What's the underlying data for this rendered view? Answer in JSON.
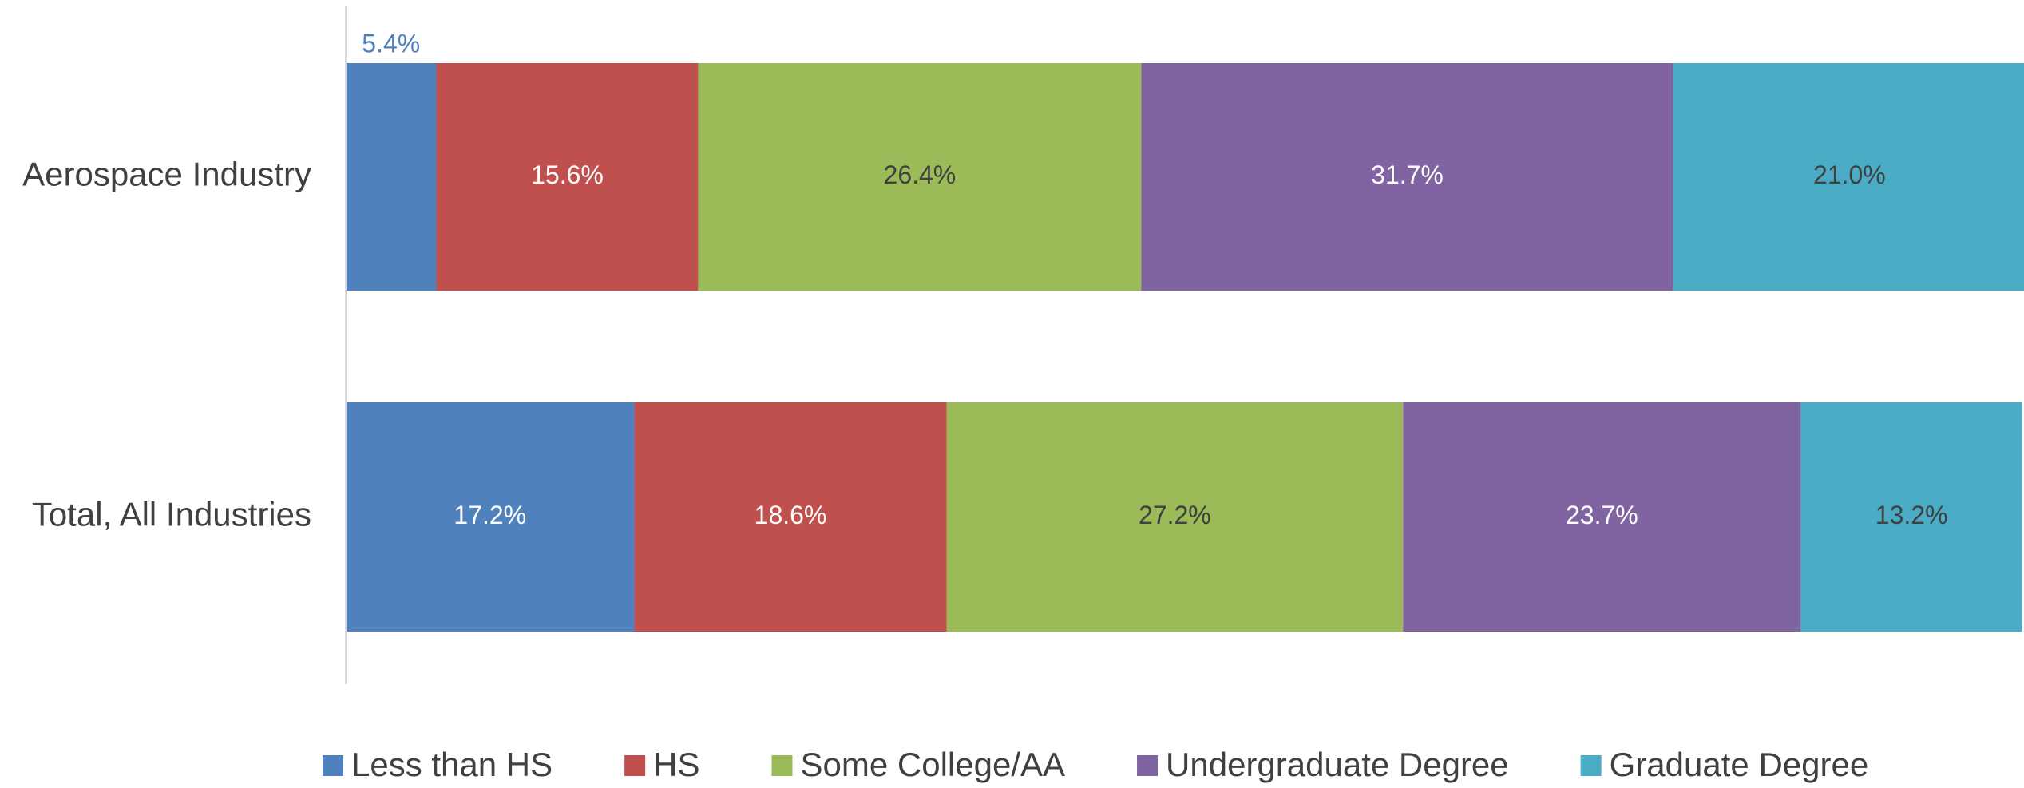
{
  "chart_data": {
    "type": "stacked-bar-horizontal",
    "categories": [
      "Aerospace Industry",
      "Total, All Industries"
    ],
    "xlim": [
      0,
      100
    ],
    "series": [
      {
        "name": "Less than HS",
        "color": "#4f81bd",
        "values": [
          5.4,
          17.2
        ],
        "value_labels": [
          "5.4%",
          "17.2%"
        ]
      },
      {
        "name": "HS",
        "color": "#c0504d",
        "values": [
          15.6,
          18.6
        ],
        "value_labels": [
          "15.6%",
          "18.6%"
        ]
      },
      {
        "name": "Some College/AA",
        "color": "#9bbb59",
        "values": [
          26.4,
          27.2
        ],
        "value_labels": [
          "26.4%",
          "27.2%"
        ]
      },
      {
        "name": "Undergraduate Degree",
        "color": "#8064a2",
        "values": [
          31.7,
          23.7
        ],
        "value_labels": [
          "31.7%",
          "23.7%"
        ]
      },
      {
        "name": "Graduate Degree",
        "color": "#4bacc6",
        "values": [
          21.0,
          13.2
        ],
        "value_labels": [
          "21.0%",
          "13.2%"
        ]
      }
    ],
    "legend": "bottom"
  }
}
